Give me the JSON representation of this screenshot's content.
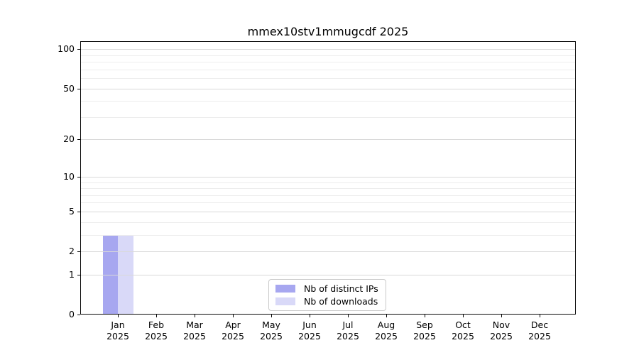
{
  "chart_data": {
    "type": "bar",
    "title": "mmex10stv1mmugcdf 2025",
    "categories": [
      {
        "month": "Jan",
        "year": "2025"
      },
      {
        "month": "Feb",
        "year": "2025"
      },
      {
        "month": "Mar",
        "year": "2025"
      },
      {
        "month": "Apr",
        "year": "2025"
      },
      {
        "month": "May",
        "year": "2025"
      },
      {
        "month": "Jun",
        "year": "2025"
      },
      {
        "month": "Jul",
        "year": "2025"
      },
      {
        "month": "Aug",
        "year": "2025"
      },
      {
        "month": "Sep",
        "year": "2025"
      },
      {
        "month": "Oct",
        "year": "2025"
      },
      {
        "month": "Nov",
        "year": "2025"
      },
      {
        "month": "Dec",
        "year": "2025"
      }
    ],
    "series": [
      {
        "name": "Nb of distinct IPs",
        "color": "#a7a7f0",
        "values": [
          3,
          0,
          0,
          0,
          0,
          0,
          0,
          0,
          0,
          0,
          0,
          0
        ]
      },
      {
        "name": "Nb of downloads",
        "color": "#d9d9f8",
        "values": [
          3,
          0,
          0,
          0,
          0,
          0,
          0,
          0,
          0,
          0,
          0,
          0
        ]
      }
    ],
    "xlabel": "",
    "ylabel": "",
    "yscale": "log1p",
    "ylim": [
      0,
      115
    ],
    "yticks": [
      0,
      1,
      2,
      5,
      10,
      20,
      50,
      100
    ],
    "minor_gridlines": [
      3,
      4,
      6,
      7,
      8,
      9,
      30,
      40,
      60,
      70,
      80,
      90
    ],
    "grid": "on",
    "legend_position": "bottom-center",
    "colors": {
      "axis": "#0a0a0a",
      "grid_major": "#d9d9d9",
      "grid_minor": "#ededed",
      "text": "#000000",
      "background": "#ffffff"
    }
  }
}
